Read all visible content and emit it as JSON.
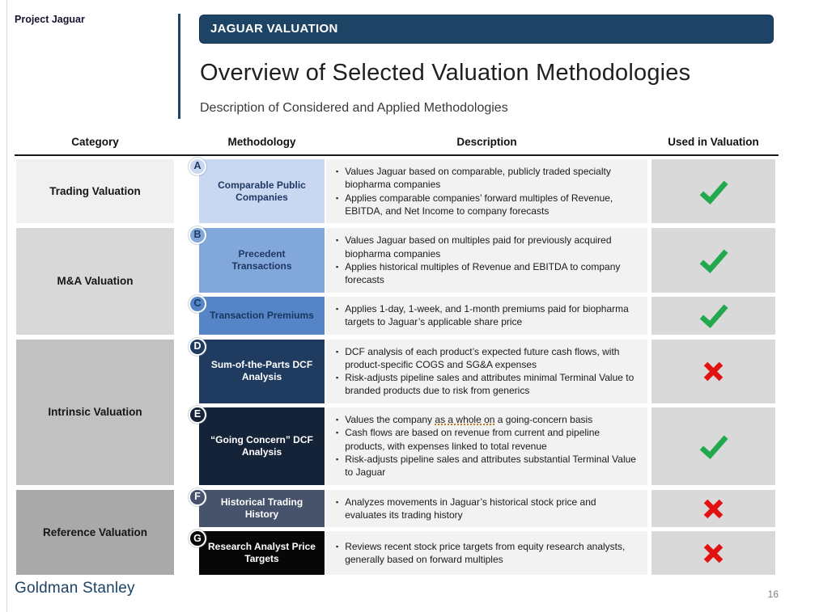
{
  "page": {
    "project_label": "Project Jaguar",
    "brand": "Goldman Stanley",
    "page_number": "16"
  },
  "header": {
    "kicker": "JAGUAR VALUATION",
    "title": "Overview of Selected Valuation Methodologies",
    "subtitle": "Description of Considered and Applied Methodologies"
  },
  "table": {
    "columns": [
      "Category",
      "Methodology",
      "Description",
      "Used in Valuation"
    ],
    "status_colors": {
      "check": "#23a94d",
      "cross": "#e31212"
    },
    "groups": [
      {
        "category": "Trading Valuation",
        "category_bg": "#f0f0f0",
        "rows": [
          {
            "badge": "A",
            "methodology": "Comparable Public Companies",
            "cell_bg": "#c9d8f0",
            "cell_text": "#1f3864",
            "bullets": [
              "Values Jaguar based on comparable, publicly traded specialty biopharma companies",
              "Applies comparable companies’ forward multiples of Revenue, EBITDA, and Net Income to company forecasts"
            ],
            "used": "check"
          }
        ]
      },
      {
        "category": "M&A Valuation",
        "category_bg": "#d8d8d8",
        "rows": [
          {
            "badge": "B",
            "methodology": "Precedent Transactions",
            "cell_bg": "#82a7da",
            "cell_text": "#1f3864",
            "bullets": [
              "Values Jaguar based on multiples paid for previously acquired biopharma companies",
              "Applies historical multiples of Revenue and EBITDA to company forecasts"
            ],
            "used": "check"
          },
          {
            "badge": "C",
            "methodology": "Transaction Premiums",
            "cell_bg": "#5585c7",
            "cell_text": "#17375e",
            "bullets": [
              "Applies 1-day, 1-week, and 1-month premiums paid for biopharma targets to Jaguar’s applicable share price"
            ],
            "used": "check"
          }
        ]
      },
      {
        "category": "Intrinsic Valuation",
        "category_bg": "#c1c1c1",
        "rows": [
          {
            "badge": "D",
            "methodology": "Sum-of-the-Parts DCF Analysis",
            "cell_bg": "#1f3b60",
            "cell_text": "#ffffff",
            "bullets": [
              "DCF analysis of each product’s expected future cash flows, with product-specific COGS and SG&A expenses",
              "Risk-adjusts pipeline sales and attributes minimal Terminal Value to branded products due to risk from generics"
            ],
            "used": "cross"
          },
          {
            "badge": "E",
            "methodology": "“Going Concern” DCF Analysis",
            "cell_bg": "#152339",
            "cell_text": "#ffffff",
            "bullets": [
              {
                "text": "Values the company as a whole on a going-concern basis",
                "squiggle": "as a whole on"
              },
              "Cash flows are based on revenue from current and pipeline products, with expenses linked to total revenue",
              "Risk-adjusts pipeline sales and attributes substantial Terminal Value to Jaguar"
            ],
            "used": "check"
          }
        ]
      },
      {
        "category": "Reference Valuation",
        "category_bg": "#a9a9a9",
        "rows": [
          {
            "badge": "F",
            "methodology": "Historical Trading History",
            "cell_bg": "#47536a",
            "cell_text": "#ffffff",
            "bullets": [
              "Analyzes movements in Jaguar’s historical stock price and evaluates its trading history"
            ],
            "used": "cross"
          },
          {
            "badge": "G",
            "methodology": "Research Analyst Price Targets",
            "cell_bg": "#070707",
            "cell_text": "#ffffff",
            "bullets": [
              "Reviews recent stock price targets from equity research analysts, generally based on forward multiples"
            ],
            "used": "cross"
          }
        ]
      }
    ]
  }
}
